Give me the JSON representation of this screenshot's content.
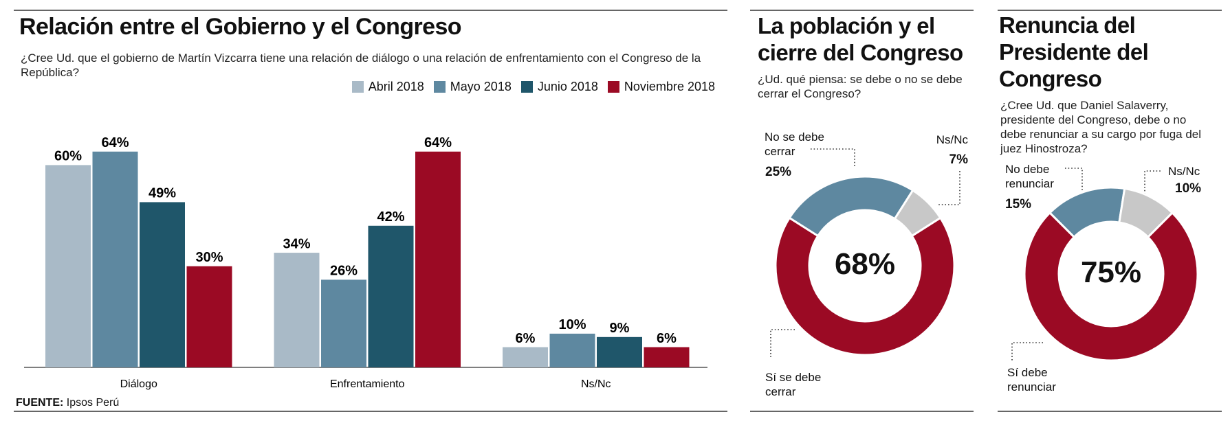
{
  "chart_data": [
    {
      "type": "bar",
      "title": "Relación entre el Gobierno y el Congreso",
      "subtitle": "¿Cree Ud. que el gobierno de Martín Vizcarra tiene una relación de diálogo o una relación de enfrentamiento con el Congreso de la República?",
      "categories": [
        "Diálogo",
        "Enfrentamiento",
        "Ns/Nc"
      ],
      "series": [
        {
          "name": "Abril 2018",
          "color": "#a9bac7",
          "values": [
            60,
            34,
            6
          ],
          "value_labels": [
            "60%",
            "34%",
            "6%"
          ]
        },
        {
          "name": "Mayo 2018",
          "color": "#5e88a0",
          "values": [
            64,
            26,
            10
          ],
          "value_labels": [
            "64%",
            "26%",
            "10%"
          ]
        },
        {
          "name": "Junio 2018",
          "color": "#1f566a",
          "values": [
            49,
            42,
            9
          ],
          "value_labels": [
            "49%",
            "42%",
            "9%"
          ]
        },
        {
          "name": "Noviembre 2018",
          "color": "#9b0a24",
          "values": [
            30,
            64,
            6
          ],
          "value_labels": [
            "30%",
            "64%",
            "6%"
          ]
        }
      ],
      "source_label": "FUENTE:",
      "source": "Ipsos Perú"
    },
    {
      "type": "donut",
      "title": "La población y el cierre del Congreso",
      "subtitle": "¿Ud. qué piensa: se debe o no se debe cerrar el Congreso?",
      "categories": [
        "No se debe cerrar",
        "Ns/Nc",
        "Sí se debe cerrar"
      ],
      "values": [
        25,
        7,
        68
      ],
      "value_labels": [
        "25%",
        "7%",
        "68%"
      ],
      "colors": [
        "#5e88a0",
        "#c8c8c8",
        "#9b0a24"
      ]
    },
    {
      "type": "donut",
      "title": "Renuncia del Presidente del Congreso",
      "subtitle": "¿Cree Ud. que Daniel Salaverry, presidente del Congreso, debe o no debe renunciar a su cargo por fuga del juez Hinostroza?",
      "categories": [
        "No debe renunciar",
        "Ns/Nc",
        "Sí debe renunciar"
      ],
      "values": [
        15,
        10,
        75
      ],
      "value_labels": [
        "15%",
        "10%",
        "75%"
      ],
      "colors": [
        "#5e88a0",
        "#c8c8c8",
        "#9b0a24"
      ]
    }
  ]
}
